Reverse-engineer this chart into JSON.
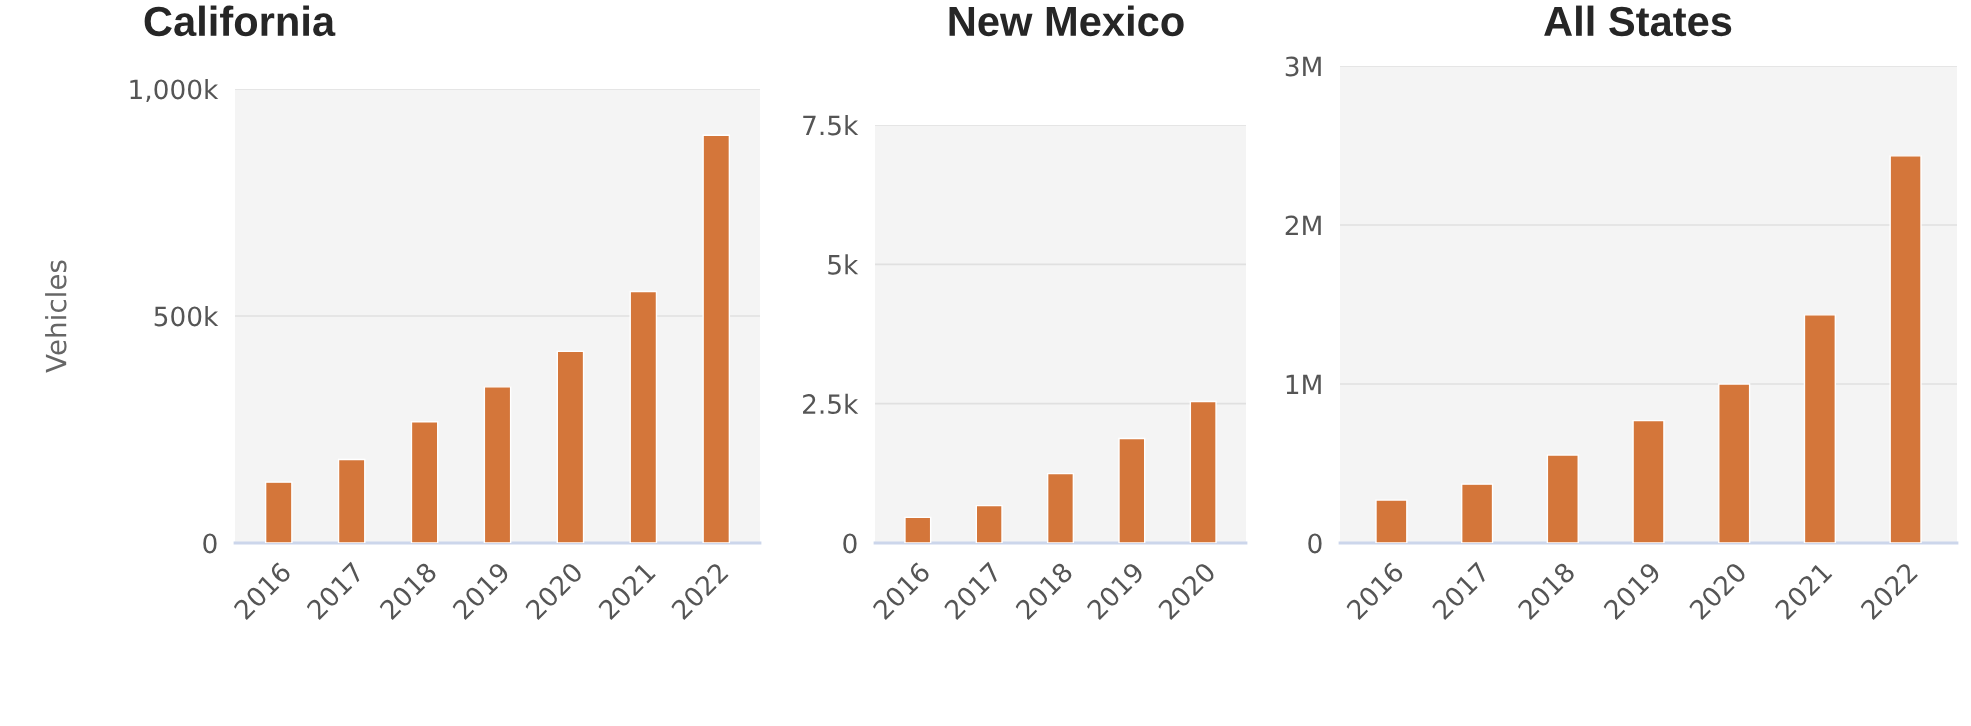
{
  "chart_data": [
    {
      "type": "bar",
      "title": "California",
      "ylabel": "Vehicles",
      "categories": [
        "2016",
        "2017",
        "2018",
        "2019",
        "2020",
        "2021",
        "2022"
      ],
      "values": [
        134000,
        184000,
        267000,
        344000,
        422000,
        554000,
        898000
      ],
      "color": "#d4763a",
      "ylim": [
        0,
        1000000
      ],
      "yticks": [
        {
          "value": 0,
          "label": "0"
        },
        {
          "value": 500000,
          "label": "500k"
        },
        {
          "value": 1000000,
          "label": "1,000k"
        }
      ],
      "grid": "y"
    },
    {
      "type": "bar",
      "title": "New Mexico",
      "categories": [
        "2016",
        "2017",
        "2018",
        "2019",
        "2020"
      ],
      "values": [
        460,
        670,
        1245,
        1875,
        2540
      ],
      "color": "#d4763a",
      "ylim": [
        0,
        7500
      ],
      "yticks": [
        {
          "value": 0,
          "label": "0"
        },
        {
          "value": 2500,
          "label": "2.5k"
        },
        {
          "value": 5000,
          "label": "5k"
        },
        {
          "value": 7500,
          "label": "7.5k"
        }
      ],
      "grid": "y"
    },
    {
      "type": "bar",
      "title": "All States",
      "categories": [
        "2016",
        "2017",
        "2018",
        "2019",
        "2020",
        "2021",
        "2022"
      ],
      "values": [
        270000,
        370000,
        553000,
        770000,
        1000000,
        1435000,
        2435000
      ],
      "color": "#d4763a",
      "ylim": [
        0,
        3000000
      ],
      "yticks": [
        {
          "value": 0,
          "label": "0"
        },
        {
          "value": 1000000,
          "label": "1M"
        },
        {
          "value": 2000000,
          "label": "2M"
        },
        {
          "value": 3000000,
          "label": "3M"
        }
      ],
      "grid": "y"
    }
  ]
}
